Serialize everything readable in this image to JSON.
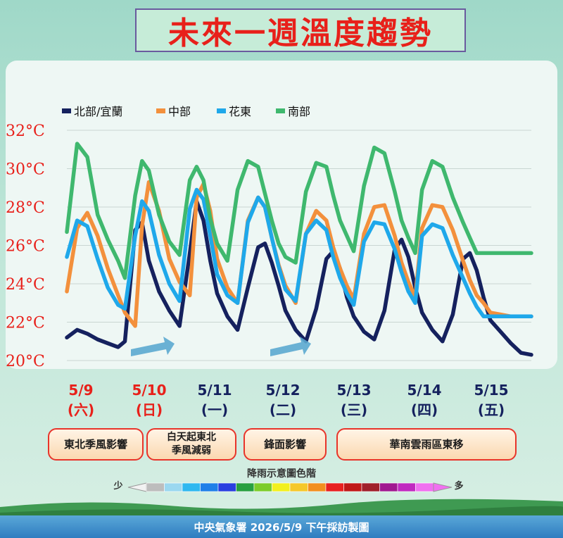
{
  "title": "未來一週溫度趨勢",
  "legend": [
    {
      "label": "北部/宜蘭",
      "color": "#15215e"
    },
    {
      "label": "中部",
      "color": "#f3903c"
    },
    {
      "label": "花東",
      "color": "#1fa8ea"
    },
    {
      "label": "南部",
      "color": "#3fb86e"
    }
  ],
  "chart_data": {
    "type": "line",
    "ylim": [
      20,
      32
    ],
    "y_ticks": [
      "20°C",
      "22°C",
      "24°C",
      "26°C",
      "28°C",
      "30°C",
      "32°C"
    ],
    "y_tick_values": [
      20,
      22,
      24,
      26,
      28,
      30,
      32
    ],
    "x": [
      0,
      0.15,
      0.3,
      0.45,
      0.6,
      0.75,
      0.85,
      1.0,
      1.1,
      1.2,
      1.35,
      1.5,
      1.65,
      1.8,
      1.9,
      2.0,
      2.1,
      2.2,
      2.35,
      2.5,
      2.65,
      2.8,
      2.9,
      3.0,
      3.1,
      3.2,
      3.35,
      3.5,
      3.65,
      3.8,
      3.9,
      4.0,
      4.1,
      4.2,
      4.35,
      4.5,
      4.65,
      4.8,
      4.9,
      5.0,
      5.1,
      5.2,
      5.35,
      5.5,
      5.65,
      5.8,
      5.9,
      6.0,
      6.1,
      6.2,
      6.35,
      6.5,
      6.65,
      6.8
    ],
    "series": [
      {
        "name": "北部/宜蘭",
        "color": "#15215e",
        "values": [
          21.2,
          21.6,
          21.4,
          21.1,
          20.9,
          20.7,
          21.0,
          26.8,
          27.2,
          25.2,
          23.6,
          22.6,
          21.8,
          25.6,
          28.3,
          27.3,
          25.2,
          23.5,
          22.3,
          21.6,
          23.8,
          25.9,
          26.1,
          25.1,
          23.9,
          22.6,
          21.6,
          21.0,
          22.7,
          25.3,
          25.7,
          24.8,
          23.3,
          22.3,
          21.5,
          21.1,
          22.6,
          25.8,
          26.3,
          25.4,
          23.8,
          22.5,
          21.6,
          21.0,
          22.4,
          25.3,
          25.6,
          24.7,
          23.3,
          22.1,
          21.5,
          20.9,
          20.4,
          20.3
        ]
      },
      {
        "name": "中部",
        "color": "#f3903c",
        "values": [
          23.6,
          26.9,
          27.7,
          26.5,
          24.8,
          23.4,
          22.5,
          21.8,
          27.0,
          29.3,
          27.8,
          25.3,
          24.1,
          23.4,
          28.5,
          29.2,
          27.8,
          25.3,
          23.8,
          23.0,
          27.3,
          28.5,
          28.0,
          26.4,
          25.0,
          23.9,
          23.0,
          26.6,
          27.8,
          27.3,
          25.9,
          24.8,
          23.9,
          23.2,
          26.6,
          28.0,
          28.1,
          26.5,
          25.1,
          24.1,
          23.3,
          26.9,
          28.1,
          28.0,
          26.8,
          25.2,
          24.2,
          23.4,
          23.0,
          22.5,
          22.4,
          22.3,
          22.3,
          22.3
        ]
      },
      {
        "name": "花東",
        "color": "#1fa8ea",
        "values": [
          25.4,
          27.3,
          27.0,
          25.3,
          23.8,
          22.9,
          22.7,
          26.5,
          28.3,
          27.8,
          25.5,
          24.0,
          23.1,
          27.9,
          28.9,
          28.4,
          26.5,
          24.5,
          23.4,
          23.0,
          27.2,
          28.5,
          28.0,
          26.4,
          24.9,
          23.7,
          23.1,
          26.6,
          27.3,
          26.8,
          25.4,
          24.3,
          23.5,
          22.9,
          26.2,
          27.2,
          27.1,
          25.8,
          24.6,
          23.6,
          23.0,
          26.5,
          27.1,
          26.9,
          25.5,
          24.3,
          23.5,
          22.8,
          22.3,
          22.3,
          22.3,
          22.3,
          22.3,
          22.3
        ]
      },
      {
        "name": "南部",
        "color": "#3fb86e",
        "values": [
          26.7,
          31.3,
          30.6,
          27.6,
          26.3,
          25.2,
          24.3,
          28.6,
          30.4,
          29.9,
          27.6,
          26.2,
          25.5,
          29.4,
          30.1,
          29.4,
          27.4,
          26.1,
          25.2,
          28.9,
          30.4,
          30.1,
          28.7,
          27.3,
          26.1,
          25.4,
          25.1,
          28.8,
          30.3,
          30.1,
          28.6,
          27.3,
          26.5,
          25.7,
          29.1,
          31.1,
          30.8,
          28.8,
          27.3,
          26.4,
          25.6,
          28.9,
          30.4,
          30.1,
          28.5,
          27.2,
          26.4,
          25.6,
          25.6,
          25.6,
          25.6,
          25.6,
          25.6,
          25.6
        ]
      }
    ]
  },
  "days": [
    {
      "date": "5/9",
      "weekday": "(六)",
      "color": "#e8201a"
    },
    {
      "date": "5/10",
      "weekday": "(日)",
      "color": "#e8201a"
    },
    {
      "date": "5/11",
      "weekday": "(一)",
      "color": "#15215e"
    },
    {
      "date": "5/12",
      "weekday": "(二)",
      "color": "#15215e"
    },
    {
      "date": "5/13",
      "weekday": "(三)",
      "color": "#15215e"
    },
    {
      "date": "5/14",
      "weekday": "(四)",
      "color": "#15215e"
    },
    {
      "date": "5/15",
      "weekday": "(五)",
      "color": "#15215e"
    }
  ],
  "events": [
    {
      "label": "東北季風影響"
    },
    {
      "label": "白天起東北\n季風減弱"
    },
    {
      "label": "鋒面影響"
    },
    {
      "label": "華南雲雨區東移"
    }
  ],
  "rain_scale": {
    "title": "降雨示意圖色階",
    "low_label": "少",
    "high_label": "多",
    "colors": [
      "#bdbdbd",
      "#9bd8f0",
      "#2fb8f0",
      "#1f7fe8",
      "#2a3fe0",
      "#28a040",
      "#7ccc2a",
      "#f2f01e",
      "#f5c82a",
      "#f28f1e",
      "#e82020",
      "#c01818",
      "#a0202a",
      "#a01890",
      "#c02ac0",
      "#f070f0"
    ]
  },
  "footer": "中央氣象署  2026/5/9  下午採訪製圖"
}
